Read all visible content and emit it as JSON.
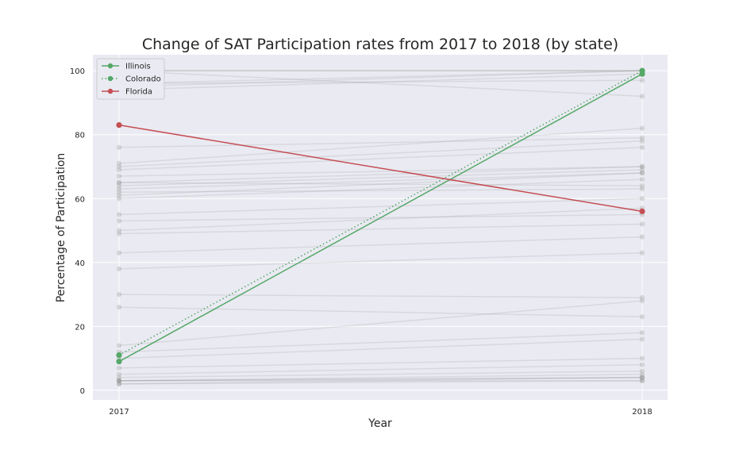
{
  "chart_data": {
    "type": "line",
    "title": "Change of SAT Participation rates from 2017 to 2018 (by state)",
    "xlabel": "Year",
    "ylabel": "Percentage of Participation",
    "categories": [
      "2017",
      "2018"
    ],
    "ylim": [
      -3,
      105
    ],
    "yticks": [
      0,
      20,
      40,
      60,
      80,
      100
    ],
    "grid": true,
    "legend_position": "top-left",
    "highlight_series": [
      {
        "name": "Illinois",
        "values": [
          9,
          99
        ],
        "color": "#55a868",
        "style": "solid"
      },
      {
        "name": "Colorado",
        "values": [
          11,
          100
        ],
        "color": "#55a868",
        "style": "dotted"
      },
      {
        "name": "Florida",
        "values": [
          83,
          56
        ],
        "color": "#c44e52",
        "style": "solid"
      }
    ],
    "background_series": [
      [
        100,
        100
      ],
      [
        100,
        100
      ],
      [
        100,
        100
      ],
      [
        96,
        100
      ],
      [
        95,
        100
      ],
      [
        94,
        99
      ],
      [
        100,
        92
      ],
      [
        96,
        97
      ],
      [
        71,
        82
      ],
      [
        76,
        79
      ],
      [
        70,
        78
      ],
      [
        69,
        76
      ],
      [
        67,
        70
      ],
      [
        65,
        70
      ],
      [
        64,
        69
      ],
      [
        63,
        68
      ],
      [
        61,
        68
      ],
      [
        60,
        66
      ],
      [
        65,
        64
      ],
      [
        62,
        63
      ],
      [
        55,
        60
      ],
      [
        50,
        57
      ],
      [
        53,
        55
      ],
      [
        49,
        52
      ],
      [
        43,
        48
      ],
      [
        38,
        43
      ],
      [
        30,
        29
      ],
      [
        26,
        23
      ],
      [
        14,
        28
      ],
      [
        12,
        18
      ],
      [
        10,
        16
      ],
      [
        7,
        10
      ],
      [
        5,
        8
      ],
      [
        4,
        6
      ],
      [
        3,
        5
      ],
      [
        3,
        4
      ],
      [
        3,
        4
      ],
      [
        2,
        4
      ],
      [
        3,
        3
      ],
      [
        2,
        3
      ]
    ]
  }
}
